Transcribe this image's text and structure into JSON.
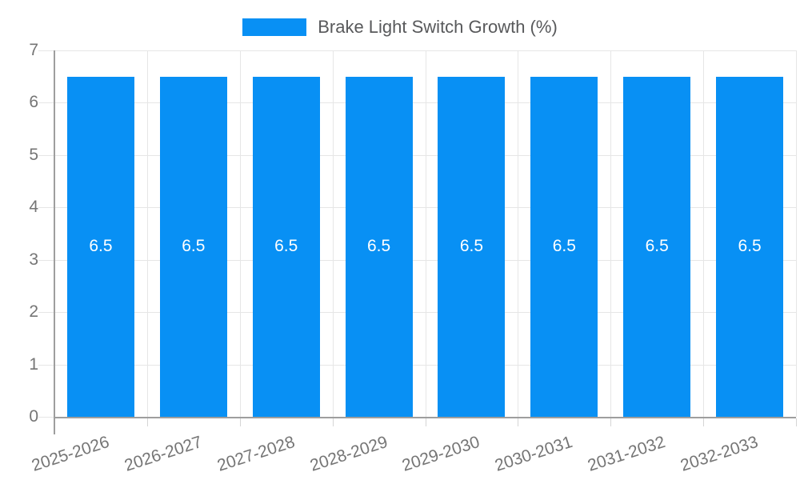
{
  "chart_data": {
    "type": "bar",
    "title": "",
    "legend": {
      "label": "Brake Light Switch Growth (%)",
      "position": "top"
    },
    "categories": [
      "2025-2026",
      "2026-2027",
      "2027-2028",
      "2028-2029",
      "2029-2030",
      "2030-2031",
      "2031-2032",
      "2032-2033"
    ],
    "series": [
      {
        "name": "Brake Light Switch Growth (%)",
        "values": [
          6.5,
          6.5,
          6.5,
          6.5,
          6.5,
          6.5,
          6.5,
          6.5
        ]
      }
    ],
    "bar_value_labels": [
      "6.5",
      "6.5",
      "6.5",
      "6.5",
      "6.5",
      "6.5",
      "6.5",
      "6.5"
    ],
    "xlabel": "",
    "ylabel": "",
    "ylim": [
      0,
      7
    ],
    "yticks": [
      0,
      1,
      2,
      3,
      4,
      5,
      6,
      7
    ],
    "grid": true,
    "x_tick_rotation_deg": -18,
    "colors": {
      "bar": "#0890f4",
      "grid": "#e6e6e6",
      "tick_mark": "#d5d5d5",
      "axis": "#9e9e9e",
      "tick_text": "#757575",
      "legend_text": "#58595b",
      "value_text": "#ffffff",
      "background": "#ffffff"
    }
  }
}
